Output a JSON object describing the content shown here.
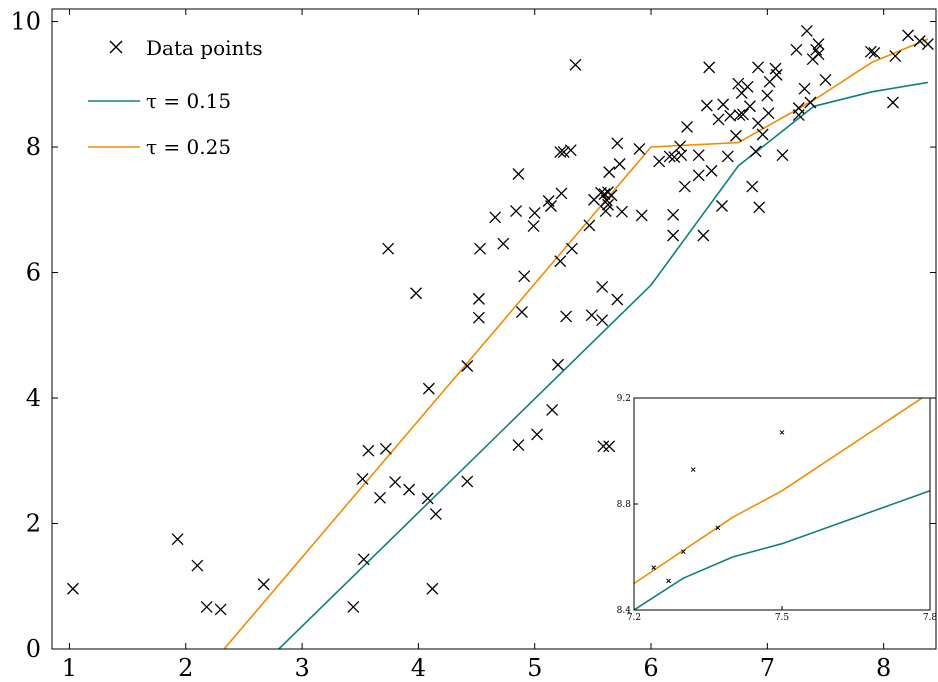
{
  "chart_data": {
    "type": "scatter",
    "title": "",
    "xlabel": "",
    "ylabel": "",
    "xlim": [
      0.85,
      8.45
    ],
    "ylim": [
      0,
      10.2
    ],
    "x_ticks": [
      1,
      2,
      3,
      4,
      5,
      6,
      7,
      8
    ],
    "y_ticks": [
      0,
      2,
      4,
      6,
      8,
      10
    ],
    "legend": {
      "placement": "top-left",
      "entries": [
        {
          "key": "points",
          "label": "Data points"
        },
        {
          "key": "tau015",
          "label": "τ = 0.15"
        },
        {
          "key": "tau025",
          "label": "τ = 0.25"
        }
      ]
    },
    "colors": {
      "points": "#000000",
      "tau015": "#0f8080",
      "tau025": "#f28c00"
    },
    "points": [
      [
        1.03,
        0.96
      ],
      [
        1.93,
        1.75
      ],
      [
        2.1,
        1.33
      ],
      [
        2.18,
        0.67
      ],
      [
        2.3,
        0.63
      ],
      [
        2.67,
        1.03
      ],
      [
        3.44,
        0.67
      ],
      [
        3.52,
        2.71
      ],
      [
        3.53,
        1.43
      ],
      [
        3.57,
        3.16
      ],
      [
        3.67,
        2.41
      ],
      [
        3.72,
        3.19
      ],
      [
        3.74,
        6.38
      ],
      [
        3.8,
        2.66
      ],
      [
        3.92,
        2.54
      ],
      [
        3.98,
        5.67
      ],
      [
        4.08,
        2.4
      ],
      [
        4.09,
        4.15
      ],
      [
        4.12,
        0.96
      ],
      [
        4.15,
        2.15
      ],
      [
        4.42,
        4.51
      ],
      [
        4.42,
        2.67
      ],
      [
        4.52,
        5.28
      ],
      [
        4.52,
        5.58
      ],
      [
        4.53,
        6.38
      ],
      [
        4.66,
        6.88
      ],
      [
        4.73,
        6.46
      ],
      [
        4.84,
        6.98
      ],
      [
        4.86,
        7.57
      ],
      [
        4.86,
        3.25
      ],
      [
        4.89,
        5.37
      ],
      [
        4.91,
        5.94
      ],
      [
        4.99,
        6.74
      ],
      [
        5.0,
        6.95
      ],
      [
        5.02,
        3.42
      ],
      [
        5.12,
        7.14
      ],
      [
        5.14,
        7.06
      ],
      [
        5.15,
        3.81
      ],
      [
        5.2,
        4.53
      ],
      [
        5.22,
        7.92
      ],
      [
        5.22,
        6.18
      ],
      [
        5.23,
        7.26
      ],
      [
        5.25,
        7.92
      ],
      [
        5.27,
        5.3
      ],
      [
        5.31,
        7.95
      ],
      [
        5.32,
        6.38
      ],
      [
        5.35,
        9.31
      ],
      [
        5.47,
        6.75
      ],
      [
        5.49,
        5.32
      ],
      [
        5.51,
        7.16
      ],
      [
        5.57,
        7.27
      ],
      [
        5.58,
        5.77
      ],
      [
        5.58,
        5.24
      ],
      [
        5.59,
        3.23
      ],
      [
        5.6,
        7.25
      ],
      [
        5.61,
        6.98
      ],
      [
        5.62,
        7.15
      ],
      [
        5.63,
        7.28
      ],
      [
        5.63,
        7.08
      ],
      [
        5.64,
        3.23
      ],
      [
        5.64,
        7.6
      ],
      [
        5.66,
        7.23
      ],
      [
        5.71,
        5.57
      ],
      [
        5.71,
        8.06
      ],
      [
        5.73,
        7.73
      ],
      [
        5.75,
        6.97
      ],
      [
        5.9,
        7.97
      ],
      [
        5.92,
        6.91
      ],
      [
        6.07,
        7.77
      ],
      [
        6.16,
        7.85
      ],
      [
        6.19,
        6.92
      ],
      [
        6.19,
        6.59
      ],
      [
        6.2,
        7.84
      ],
      [
        6.25,
        8.01
      ],
      [
        6.26,
        7.87
      ],
      [
        6.29,
        7.37
      ],
      [
        6.31,
        8.32
      ],
      [
        6.41,
        7.55
      ],
      [
        6.41,
        7.87
      ],
      [
        6.45,
        6.59
      ],
      [
        6.48,
        8.66
      ],
      [
        6.5,
        9.27
      ],
      [
        6.52,
        7.62
      ],
      [
        6.58,
        8.44
      ],
      [
        6.61,
        7.06
      ],
      [
        6.62,
        8.68
      ],
      [
        6.66,
        7.85
      ],
      [
        6.68,
        8.5
      ],
      [
        6.73,
        8.18
      ],
      [
        6.75,
        9.01
      ],
      [
        6.76,
        8.51
      ],
      [
        6.78,
        8.86
      ],
      [
        6.79,
        8.52
      ],
      [
        6.83,
        8.96
      ],
      [
        6.85,
        8.65
      ],
      [
        6.87,
        7.37
      ],
      [
        6.9,
        7.93
      ],
      [
        6.92,
        8.38
      ],
      [
        6.92,
        9.27
      ],
      [
        6.93,
        7.04
      ],
      [
        6.96,
        8.2
      ],
      [
        7.0,
        8.82
      ],
      [
        7.01,
        8.54
      ],
      [
        7.02,
        9.04
      ],
      [
        7.07,
        9.25
      ],
      [
        7.08,
        9.15
      ],
      [
        7.13,
        7.87
      ],
      [
        7.25,
        9.55
      ],
      [
        7.27,
        8.62
      ],
      [
        7.27,
        8.51
      ],
      [
        7.32,
        8.93
      ],
      [
        7.34,
        9.85
      ],
      [
        7.37,
        8.71
      ],
      [
        7.39,
        9.4
      ],
      [
        7.42,
        9.55
      ],
      [
        7.44,
        9.64
      ],
      [
        7.44,
        9.48
      ],
      [
        7.5,
        9.07
      ],
      [
        7.89,
        9.52
      ],
      [
        7.92,
        9.5
      ],
      [
        8.08,
        8.71
      ],
      [
        8.1,
        9.45
      ],
      [
        8.21,
        9.78
      ],
      [
        8.31,
        9.69
      ],
      [
        8.38,
        9.64
      ]
    ],
    "tau015": [
      [
        2.8,
        0
      ],
      [
        6.0,
        5.8
      ],
      [
        6.75,
        7.7
      ],
      [
        7.4,
        8.65
      ],
      [
        7.9,
        8.88
      ],
      [
        8.38,
        9.03
      ]
    ],
    "tau025": [
      [
        2.33,
        0
      ],
      [
        6.0,
        8.0
      ],
      [
        6.75,
        8.07
      ],
      [
        7.4,
        8.75
      ],
      [
        7.9,
        9.35
      ],
      [
        8.38,
        9.72
      ]
    ],
    "inset": {
      "xlim": [
        7.2,
        7.8
      ],
      "ylim": [
        8.4,
        9.2
      ],
      "x_ticks": [
        "7.2",
        "7.5",
        "7.8"
      ],
      "y_ticks": [
        "8.4",
        "8.8",
        "9.2"
      ],
      "points": [
        [
          7.24,
          8.56
        ],
        [
          7.27,
          8.51
        ],
        [
          7.3,
          8.62
        ],
        [
          7.32,
          8.93
        ],
        [
          7.37,
          8.71
        ],
        [
          7.5,
          9.07
        ]
      ],
      "tau015": [
        [
          7.2,
          8.4
        ],
        [
          7.3,
          8.52
        ],
        [
          7.4,
          8.6
        ],
        [
          7.5,
          8.65
        ],
        [
          7.8,
          8.85
        ]
      ],
      "tau025": [
        [
          7.2,
          8.5
        ],
        [
          7.4,
          8.75
        ],
        [
          7.5,
          8.85
        ],
        [
          7.8,
          9.22
        ]
      ]
    }
  }
}
